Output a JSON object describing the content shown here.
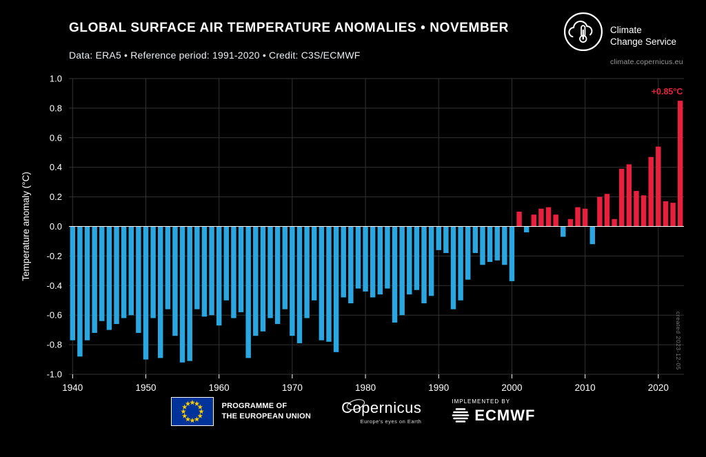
{
  "header": {
    "title": "GLOBAL SURFACE AIR TEMPERATURE ANOMALIES • NOVEMBER",
    "subtitle": "Data: ERA5 • Reference period: 1991-2020 • Credit: C3S/ECMWF"
  },
  "logo": {
    "name_line1": "Climate",
    "name_line2": "Change Service",
    "url": "climate.copernicus.eu"
  },
  "meta": {
    "created": "created 2023-12-05"
  },
  "footer": {
    "eu_line1": "PROGRAMME OF",
    "eu_line2": "THE EUROPEAN UNION",
    "copernicus": "Copernicus",
    "copernicus_tagline": "Europe's eyes on Earth",
    "implemented_by": "IMPLEMENTED BY",
    "ecmwf": "ECMWF"
  },
  "chart_data": {
    "type": "bar",
    "title": "GLOBAL SURFACE AIR TEMPERATURE ANOMALIES • NOVEMBER",
    "subtitle": "Data: ERA5 • Reference period: 1991-2020 • Credit: C3S/ECMWF",
    "xlabel": "",
    "ylabel": "Temperature anomaly (°C)",
    "ylim": [
      -1.0,
      1.0
    ],
    "yticks": [
      -1.0,
      -0.8,
      -0.6,
      -0.4,
      -0.2,
      0.0,
      0.2,
      0.4,
      0.6,
      0.8,
      1.0
    ],
    "xticks": [
      1940,
      1950,
      1960,
      1970,
      1980,
      1990,
      2000,
      2010,
      2020
    ],
    "grid": true,
    "legend": "none",
    "annotation": {
      "year": 2023,
      "text": "+0.85°C"
    },
    "colors": {
      "positive": "#e8203e",
      "negative": "#2aa7e0",
      "grid": "#333333",
      "zero_line": "#ffffff",
      "background": "#000000",
      "text": "#ffffff"
    },
    "years": [
      1940,
      1941,
      1942,
      1943,
      1944,
      1945,
      1946,
      1947,
      1948,
      1949,
      1950,
      1951,
      1952,
      1953,
      1954,
      1955,
      1956,
      1957,
      1958,
      1959,
      1960,
      1961,
      1962,
      1963,
      1964,
      1965,
      1966,
      1967,
      1968,
      1969,
      1970,
      1971,
      1972,
      1973,
      1974,
      1975,
      1976,
      1977,
      1978,
      1979,
      1980,
      1981,
      1982,
      1983,
      1984,
      1985,
      1986,
      1987,
      1988,
      1989,
      1990,
      1991,
      1992,
      1993,
      1994,
      1995,
      1996,
      1997,
      1998,
      1999,
      2000,
      2001,
      2002,
      2003,
      2004,
      2005,
      2006,
      2007,
      2008,
      2009,
      2010,
      2011,
      2012,
      2013,
      2014,
      2015,
      2016,
      2017,
      2018,
      2019,
      2020,
      2021,
      2022,
      2023
    ],
    "values": [
      -0.77,
      -0.88,
      -0.77,
      -0.72,
      -0.64,
      -0.7,
      -0.66,
      -0.62,
      -0.6,
      -0.72,
      -0.9,
      -0.62,
      -0.89,
      -0.56,
      -0.74,
      -0.92,
      -0.91,
      -0.56,
      -0.61,
      -0.6,
      -0.67,
      -0.5,
      -0.62,
      -0.58,
      -0.89,
      -0.74,
      -0.71,
      -0.62,
      -0.66,
      -0.56,
      -0.74,
      -0.79,
      -0.62,
      -0.5,
      -0.77,
      -0.78,
      -0.85,
      -0.48,
      -0.52,
      -0.42,
      -0.44,
      -0.48,
      -0.46,
      -0.42,
      -0.65,
      -0.6,
      -0.46,
      -0.43,
      -0.52,
      -0.47,
      -0.16,
      -0.18,
      -0.56,
      -0.5,
      -0.36,
      -0.18,
      -0.26,
      -0.24,
      -0.23,
      -0.26,
      -0.37,
      0.1,
      -0.04,
      0.08,
      0.12,
      0.13,
      0.08,
      -0.07,
      0.05,
      0.13,
      0.12,
      -0.12,
      0.2,
      0.22,
      0.05,
      0.39,
      0.42,
      0.24,
      0.21,
      0.47,
      0.54,
      0.17,
      0.16,
      0.85
    ]
  }
}
